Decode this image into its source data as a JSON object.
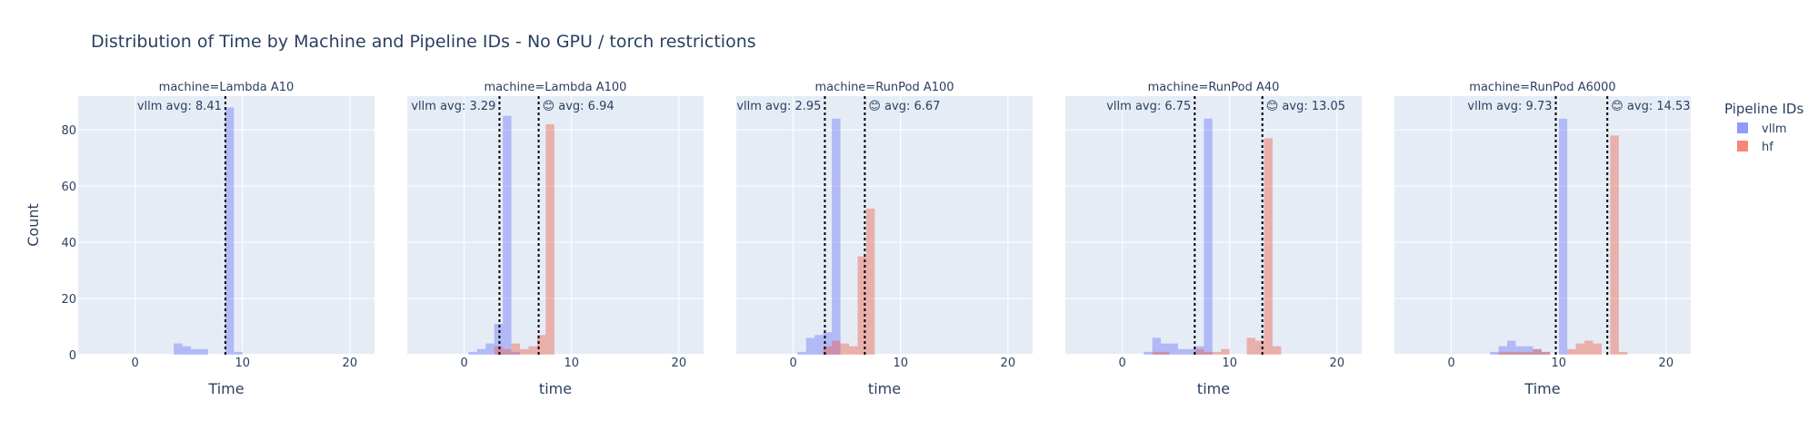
{
  "chart_data": {
    "type": "bar",
    "title": "Distribution of Time by Machine and Pipeline IDs - No GPU / torch restrictions",
    "ylabel": "Count",
    "ylim": [
      0,
      92
    ],
    "xlim": [
      -5.3,
      22.3
    ],
    "x_ticks": [
      0,
      10,
      20
    ],
    "y_ticks": [
      0,
      20,
      40,
      60,
      80
    ],
    "bin_width": 0.8,
    "legend": {
      "title": "Pipeline IDs",
      "position": "right",
      "items": [
        {
          "name": "vllm",
          "color": "#636efa"
        },
        {
          "name": "hf",
          "color": "#ef553b"
        }
      ]
    },
    "colors": {
      "plot_bg": "#e5ecf6",
      "grid": "#ffffff",
      "text": "#2a3f5f",
      "avg_line": "#000000"
    },
    "panels": [
      {
        "subtitle": "machine=Lambda A10",
        "xlabel": "Time",
        "series": [
          {
            "name": "vllm",
            "bins": [
              [
                3.6,
                4
              ],
              [
                4.4,
                3
              ],
              [
                5.2,
                2
              ],
              [
                6.0,
                2
              ],
              [
                8.4,
                88
              ],
              [
                9.2,
                1
              ]
            ]
          },
          {
            "name": "hf",
            "bins": []
          }
        ],
        "avg_lines": [
          {
            "label": "vllm avg: 8.41",
            "x": 8.41,
            "anchor": "left"
          }
        ]
      },
      {
        "subtitle": "machine=Lambda A100",
        "xlabel": "time",
        "series": [
          {
            "name": "vllm",
            "bins": [
              [
                0.4,
                1
              ],
              [
                1.2,
                2
              ],
              [
                2.0,
                4
              ],
              [
                2.8,
                11
              ],
              [
                3.6,
                85
              ],
              [
                4.4,
                1
              ]
            ]
          },
          {
            "name": "hf",
            "bins": [
              [
                2.8,
                3
              ],
              [
                3.6,
                2
              ],
              [
                4.4,
                4
              ],
              [
                5.2,
                2
              ],
              [
                6.0,
                3
              ],
              [
                6.8,
                7
              ],
              [
                7.6,
                82
              ]
            ]
          }
        ],
        "avg_lines": [
          {
            "label": "vllm avg: 3.29",
            "x": 3.29,
            "anchor": "left"
          },
          {
            "label": "😊 avg: 6.94",
            "x": 6.94,
            "anchor": "right"
          }
        ]
      },
      {
        "subtitle": "machine=RunPod A100",
        "xlabel": "time",
        "series": [
          {
            "name": "vllm",
            "bins": [
              [
                0.4,
                1
              ],
              [
                1.2,
                6
              ],
              [
                2.0,
                7
              ],
              [
                2.8,
                8
              ],
              [
                3.6,
                84
              ]
            ]
          },
          {
            "name": "hf",
            "bins": [
              [
                2.8,
                3
              ],
              [
                3.6,
                5
              ],
              [
                4.4,
                4
              ],
              [
                5.2,
                3
              ],
              [
                6.0,
                35
              ],
              [
                6.8,
                52
              ]
            ]
          }
        ],
        "avg_lines": [
          {
            "label": "vllm avg: 2.95",
            "x": 2.95,
            "anchor": "left"
          },
          {
            "label": "😊 avg: 6.67",
            "x": 6.67,
            "anchor": "right"
          }
        ]
      },
      {
        "subtitle": "machine=RunPod A40",
        "xlabel": "time",
        "series": [
          {
            "name": "vllm",
            "bins": [
              [
                2.0,
                1
              ],
              [
                2.8,
                6
              ],
              [
                3.6,
                4
              ],
              [
                4.4,
                4
              ],
              [
                5.2,
                2
              ],
              [
                6.0,
                2
              ],
              [
                6.8,
                3
              ],
              [
                7.6,
                84
              ]
            ]
          },
          {
            "name": "hf",
            "bins": [
              [
                2.8,
                1
              ],
              [
                3.6,
                1
              ],
              [
                6.8,
                2
              ],
              [
                7.6,
                1
              ],
              [
                8.4,
                1
              ],
              [
                9.2,
                2
              ],
              [
                11.6,
                6
              ],
              [
                12.4,
                5
              ],
              [
                13.2,
                77
              ],
              [
                14.0,
                3
              ]
            ]
          }
        ],
        "avg_lines": [
          {
            "label": "vllm avg: 6.75",
            "x": 6.75,
            "anchor": "left"
          },
          {
            "label": "😊 avg: 13.05",
            "x": 13.05,
            "anchor": "right"
          }
        ]
      },
      {
        "subtitle": "machine=RunPod A6000",
        "xlabel": "Time",
        "series": [
          {
            "name": "vllm",
            "bins": [
              [
                3.6,
                1
              ],
              [
                4.4,
                3
              ],
              [
                5.2,
                5
              ],
              [
                6.0,
                3
              ],
              [
                6.8,
                3
              ],
              [
                7.6,
                2
              ],
              [
                8.4,
                1
              ],
              [
                10.0,
                84
              ]
            ]
          },
          {
            "name": "hf",
            "bins": [
              [
                4.4,
                1
              ],
              [
                5.2,
                1
              ],
              [
                6.0,
                1
              ],
              [
                6.8,
                1
              ],
              [
                7.6,
                2
              ],
              [
                8.4,
                1
              ],
              [
                10.8,
                2
              ],
              [
                11.6,
                4
              ],
              [
                12.4,
                5
              ],
              [
                13.2,
                4
              ],
              [
                14.8,
                78
              ],
              [
                15.6,
                1
              ]
            ]
          }
        ],
        "avg_lines": [
          {
            "label": "vllm avg: 9.73",
            "x": 9.73,
            "anchor": "left"
          },
          {
            "label": "😊 avg: 14.53",
            "x": 14.53,
            "anchor": "right"
          }
        ]
      }
    ]
  }
}
